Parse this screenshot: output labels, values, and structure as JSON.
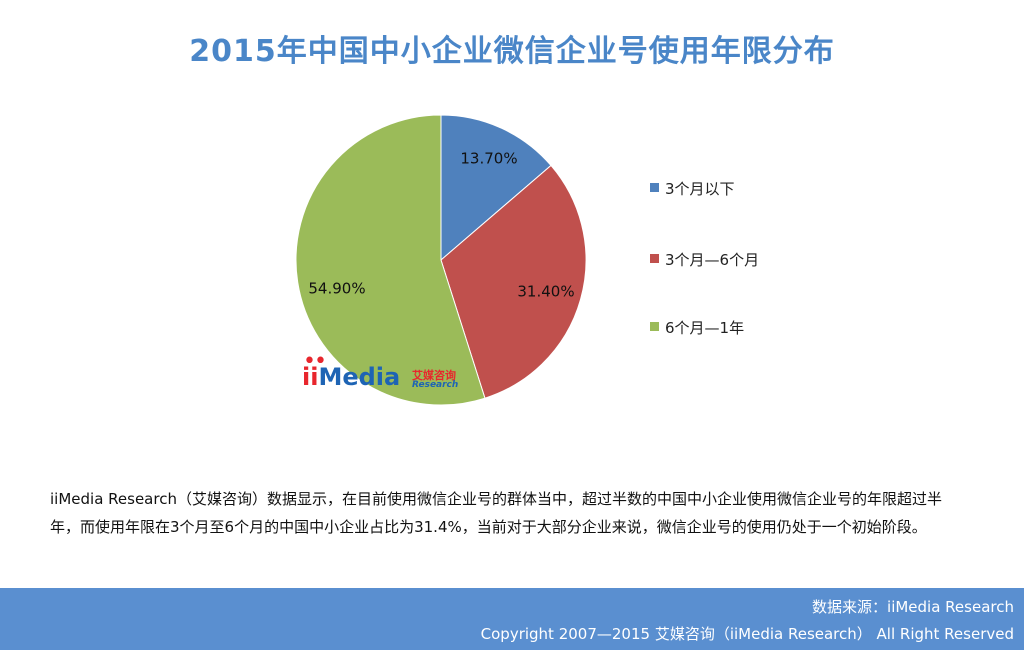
{
  "title": "2015年中国中小企业微信企业号使用年限分布",
  "chart_data": {
    "type": "pie",
    "title": "2015年中国中小企业微信企业号使用年限分布",
    "slices": [
      {
        "label": "3个月以下",
        "value": 13.7,
        "display": "13.70%",
        "color": "#4f81bd"
      },
      {
        "label": "3个月—6个月",
        "value": 31.4,
        "display": "31.40%",
        "color": "#c0504d"
      },
      {
        "label": "6个月—1年",
        "value": 54.9,
        "display": "54.90%",
        "color": "#9bbb59"
      }
    ],
    "legend_position": "right"
  },
  "logo": {
    "dots": "••",
    "ii": "ii",
    "media": "Media",
    "cn": "艾媒咨询",
    "en": "Research"
  },
  "description": "iiMedia Research（艾媒咨询）数据显示，在目前使用微信企业号的群体当中，超过半数的中国中小企业使用微信企业号的年限超过半年，而使用年限在3个月至6个月的中国中小企业占比为31.4%，当前对于大部分企业来说，微信企业号的使用仍处于一个初始阶段。",
  "footer": {
    "source": "数据来源：iiMedia Research",
    "copyright": "Copyright 2007—2015 艾媒咨询（iiMedia Research） All Right Reserved"
  }
}
